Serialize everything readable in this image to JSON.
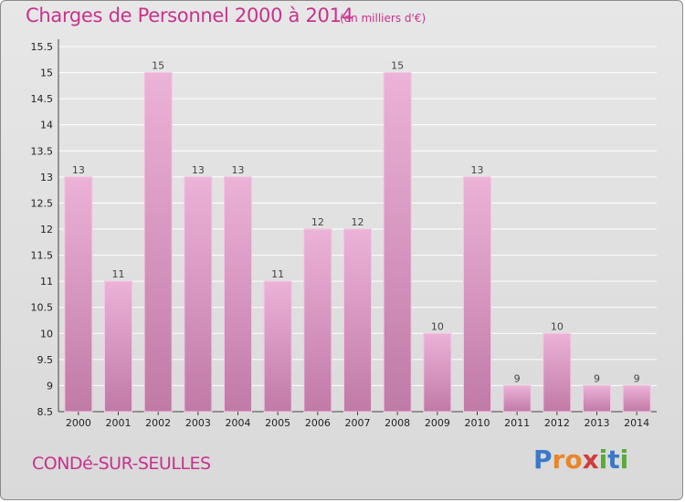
{
  "header": {
    "title": "Charges de Personnel 2000 à 2014",
    "unit_note": "(en milliers d'€)"
  },
  "footer": {
    "commune": "CONDé-SUR-SEULLES",
    "logo_letters": [
      {
        "ch": "P",
        "color": "#3c78c8"
      },
      {
        "ch": "r",
        "color": "#e8862a"
      },
      {
        "ch": "o",
        "color": "#e8862a"
      },
      {
        "ch": "x",
        "color": "#d23c3c"
      },
      {
        "ch": "i",
        "color": "#5aaa3c"
      },
      {
        "ch": "t",
        "color": "#3c78c8"
      },
      {
        "ch": "i",
        "color": "#5aaa3c"
      }
    ]
  },
  "chart_data": {
    "type": "bar",
    "title": "Charges de Personnel 2000 à 2014",
    "subtitle": "(en milliers d'€)",
    "categories": [
      "2000",
      "2001",
      "2002",
      "2003",
      "2004",
      "2005",
      "2006",
      "2007",
      "2008",
      "2009",
      "2010",
      "2011",
      "2012",
      "2013",
      "2014"
    ],
    "values": [
      13,
      11,
      15,
      13,
      13,
      11,
      12,
      12,
      15,
      10,
      13,
      9,
      10,
      9,
      9
    ],
    "ylim": [
      8.5,
      15.5
    ],
    "yticks": [
      "8.5",
      "9",
      "9.5",
      "10",
      "10.5",
      "11",
      "11.5",
      "12",
      "12.5",
      "13",
      "13.5",
      "14",
      "14.5",
      "15",
      "15.5"
    ],
    "xlabel": "",
    "ylabel": "",
    "grid": true,
    "colors": {
      "bar_top": "#ecb2d8",
      "bar_bottom": "#c07aa6",
      "bar_edge": "#f2c6e2",
      "grid": "#ffffff",
      "text_accent": "#c8328c"
    }
  }
}
